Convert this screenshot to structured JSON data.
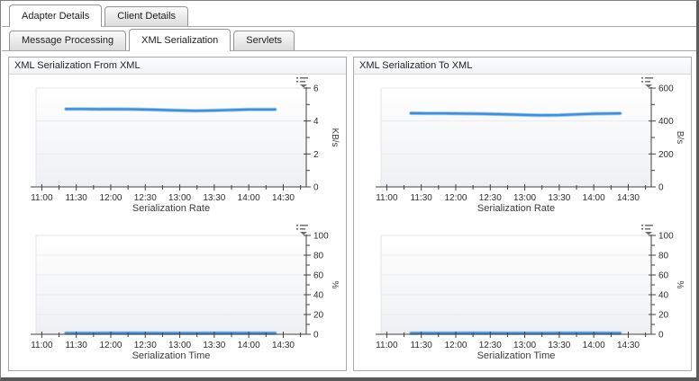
{
  "primary_tabs": [
    {
      "label": "Adapter Details",
      "active": true
    },
    {
      "label": "Client Details",
      "active": false
    }
  ],
  "secondary_tabs": [
    {
      "label": "Message Processing",
      "active": false
    },
    {
      "label": "XML Serialization",
      "active": true
    },
    {
      "label": "Servlets",
      "active": false
    }
  ],
  "panels": [
    {
      "title": "XML Serialization From XML"
    },
    {
      "title": "XML Serialization To XML"
    }
  ],
  "icons": {
    "chart_options": "legend-dropdown-icon"
  },
  "colors": {
    "line": "#3c8ede",
    "line_halo": "#a9cdf0",
    "axis": "#404040",
    "grid": "#e9eaed",
    "plot_border": "#e3e4e7",
    "plot_bg_top": "#ffffff",
    "plot_bg_bottom": "#eff0f3",
    "icon": "#6f6f6f"
  },
  "chart_data": [
    {
      "type": "line",
      "panel": "XML Serialization From XML",
      "title": "Serialization Rate",
      "ylabel": "KB/s",
      "ylim": [
        0,
        6
      ],
      "y_ticks": [
        0,
        2,
        4,
        6
      ],
      "x_ticks": [
        "11:00",
        "11:30",
        "12:00",
        "12:30",
        "13:00",
        "13:30",
        "14:00",
        "14:30"
      ],
      "x_range": [
        "10:55",
        "14:50"
      ],
      "grid": true,
      "legend": "none",
      "series": [
        {
          "name": "Serialization Rate",
          "points": [
            [
              "11:21",
              4.73
            ],
            [
              "11:35",
              4.73
            ],
            [
              "11:50",
              4.72
            ],
            [
              "12:05",
              4.72
            ],
            [
              "12:20",
              4.71
            ],
            [
              "12:35",
              4.69
            ],
            [
              "12:50",
              4.66
            ],
            [
              "13:05",
              4.63
            ],
            [
              "13:15",
              4.62
            ],
            [
              "13:30",
              4.64
            ],
            [
              "13:45",
              4.67
            ],
            [
              "14:00",
              4.7
            ],
            [
              "14:23",
              4.7
            ]
          ]
        }
      ]
    },
    {
      "type": "line",
      "panel": "XML Serialization From XML",
      "title": "Serialization Time",
      "ylabel": "%",
      "ylim": [
        0,
        100
      ],
      "y_ticks": [
        0,
        20,
        40,
        60,
        80,
        100
      ],
      "x_ticks": [
        "11:00",
        "11:30",
        "12:00",
        "12:30",
        "13:00",
        "13:30",
        "14:00",
        "14:30"
      ],
      "x_range": [
        "10:55",
        "14:50"
      ],
      "grid": true,
      "legend": "none",
      "series": [
        {
          "name": "Serialization Time",
          "points": [
            [
              "11:21",
              1.2
            ],
            [
              "11:45",
              1.2
            ],
            [
              "12:15",
              1.3
            ],
            [
              "12:45",
              1.2
            ],
            [
              "13:15",
              1.2
            ],
            [
              "13:45",
              1.3
            ],
            [
              "14:23",
              1.2
            ]
          ]
        }
      ]
    },
    {
      "type": "line",
      "panel": "XML Serialization To XML",
      "title": "Serialization Rate",
      "ylabel": "B/s",
      "ylim": [
        0,
        600
      ],
      "y_ticks": [
        0,
        200,
        400,
        600
      ],
      "x_ticks": [
        "11:00",
        "11:30",
        "12:00",
        "12:30",
        "13:00",
        "13:30",
        "14:00",
        "14:30"
      ],
      "x_range": [
        "10:55",
        "14:50"
      ],
      "grid": true,
      "legend": "none",
      "series": [
        {
          "name": "Serialization Rate",
          "points": [
            [
              "11:21",
              447
            ],
            [
              "11:35",
              446
            ],
            [
              "11:50",
              446
            ],
            [
              "12:05",
              445
            ],
            [
              "12:20",
              444
            ],
            [
              "12:35",
              442
            ],
            [
              "12:50",
              439
            ],
            [
              "13:05",
              436
            ],
            [
              "13:15",
              435
            ],
            [
              "13:30",
              436
            ],
            [
              "13:45",
              440
            ],
            [
              "14:00",
              444
            ],
            [
              "14:23",
              446
            ]
          ]
        }
      ]
    },
    {
      "type": "line",
      "panel": "XML Serialization To XML",
      "title": "Serialization Time",
      "ylabel": "%",
      "ylim": [
        0,
        100
      ],
      "y_ticks": [
        0,
        20,
        40,
        60,
        80,
        100
      ],
      "x_ticks": [
        "11:00",
        "11:30",
        "12:00",
        "12:30",
        "13:00",
        "13:30",
        "14:00",
        "14:30"
      ],
      "x_range": [
        "10:55",
        "14:50"
      ],
      "grid": true,
      "legend": "none",
      "series": [
        {
          "name": "Serialization Time",
          "points": [
            [
              "11:21",
              1.2
            ],
            [
              "11:45",
              1.2
            ],
            [
              "12:15",
              1.3
            ],
            [
              "12:45",
              1.2
            ],
            [
              "13:15",
              1.2
            ],
            [
              "13:45",
              1.3
            ],
            [
              "14:23",
              1.2
            ]
          ]
        }
      ]
    }
  ]
}
